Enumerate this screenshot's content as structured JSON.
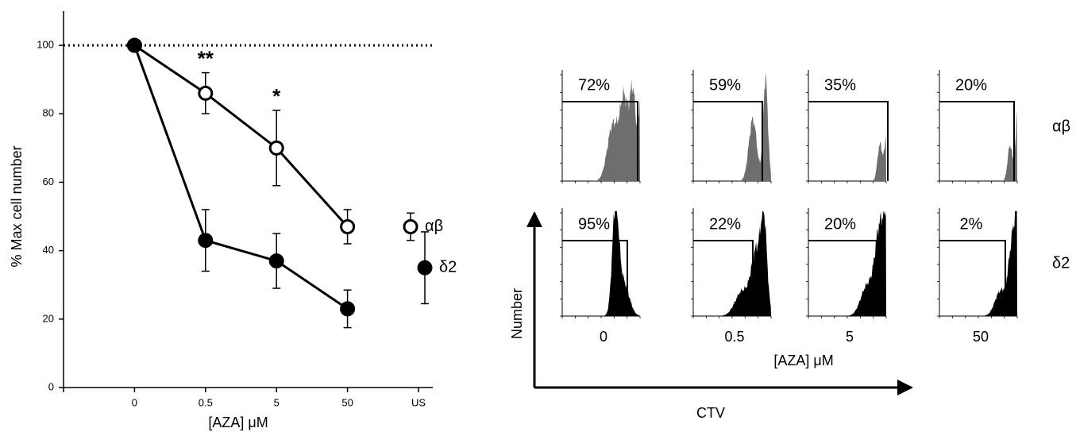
{
  "chart_data": [
    {
      "type": "line",
      "xlabel": "[AZA] μM",
      "ylabel": "% Max cell number",
      "categories": [
        null,
        "0",
        "0.5",
        "5",
        "50",
        "US"
      ],
      "series": [
        {
          "name": "αβ",
          "color": "#000000",
          "marker": "open",
          "values": [
            null,
            100,
            86,
            70,
            47,
            47
          ],
          "errors": [
            null,
            0,
            6,
            11,
            5,
            4
          ]
        },
        {
          "name": "δ2",
          "color": "#000000",
          "marker": "filled",
          "values": [
            null,
            100,
            43,
            37,
            23,
            35
          ],
          "errors": [
            null,
            0,
            9,
            8,
            5.5,
            10.5
          ]
        }
      ],
      "reference_line": 100,
      "annotations": [
        {
          "text": "**",
          "category": "0.5"
        },
        {
          "text": "*",
          "category": "5"
        }
      ],
      "ylim": [
        0,
        110
      ],
      "yticks": [
        0,
        20,
        40,
        60,
        80,
        100
      ]
    },
    {
      "type": "histogram-grid",
      "columns": [
        "0",
        "0.5",
        "5",
        "50"
      ],
      "xlabel": "[AZA] μM",
      "x_axis_label": "CTV",
      "y_axis_label": "Number",
      "rows": [
        {
          "name": "αβ",
          "color": "#6e6e6e",
          "values": [
            72,
            59,
            35,
            20
          ],
          "value_labels": [
            "72%",
            "59%",
            "35%",
            "20%"
          ]
        },
        {
          "name": "δ2",
          "color": "#000000",
          "values": [
            95,
            22,
            20,
            2
          ],
          "value_labels": [
            "95%",
            "22%",
            "20%",
            "2%"
          ]
        }
      ]
    }
  ]
}
